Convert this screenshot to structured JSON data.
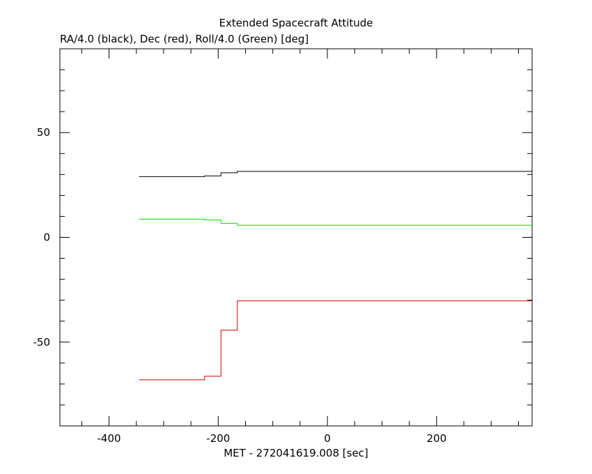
{
  "chart_data": {
    "type": "line",
    "title": "Extended Spacecraft Attitude",
    "subtitle": "RA/4.0 (black), Dec (red), Roll/4.0 (Green) [deg]",
    "xlabel": "MET - 272041619.008 [sec]",
    "ylabel": "",
    "xlim": [
      -490,
      375
    ],
    "ylim": [
      -90,
      90
    ],
    "x_ticks": [
      -400,
      -200,
      0,
      200
    ],
    "x_tick_labels": [
      "-400",
      "-200",
      "0",
      "200"
    ],
    "y_ticks": [
      -50,
      0,
      50
    ],
    "y_tick_labels": [
      "-50",
      "0",
      "50"
    ],
    "grid": false,
    "step": true,
    "series": [
      {
        "name": "RA/4.0 (black)",
        "color": "#000000",
        "x": [
          -345,
          -225,
          -195,
          -165,
          375
        ],
        "y": [
          29.0,
          29.3,
          30.8,
          31.5,
          31.5
        ]
      },
      {
        "name": "Dec (red)",
        "color": "#cc0000",
        "x": [
          -345,
          -225,
          -195,
          -165,
          375
        ],
        "y": [
          -68.0,
          -66.3,
          -44.3,
          -30.3,
          -30.3
        ]
      },
      {
        "name": "Roll/4.0 (Green)",
        "color": "#00dd00",
        "x": [
          -345,
          -225,
          -195,
          -165,
          375
        ],
        "y": [
          8.7,
          8.3,
          6.7,
          5.8,
          5.8
        ]
      }
    ]
  }
}
